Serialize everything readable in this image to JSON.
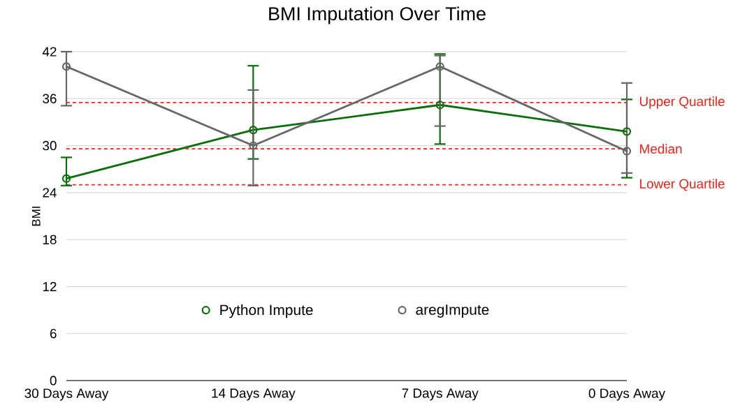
{
  "chart_data": {
    "type": "line",
    "title": "BMI Imputation Over Time",
    "ylabel": "BMI",
    "categories": [
      "30 Days Away",
      "14 Days Away",
      "7 Days Away",
      "0 Days Away"
    ],
    "series": [
      {
        "name": "Python Impute",
        "color": "#0b6e0b",
        "values": [
          25.8,
          32.0,
          35.2,
          31.8
        ],
        "errors": [
          [
            24.9,
            28.5
          ],
          [
            28.3,
            40.2
          ],
          [
            30.2,
            41.7
          ],
          [
            25.9,
            35.9
          ]
        ]
      },
      {
        "name": "aregImpute",
        "color": "#666666",
        "values": [
          40.1,
          30.0,
          40.1,
          29.3
        ],
        "errors": [
          [
            35.1,
            42.0
          ],
          [
            24.9,
            37.1
          ],
          [
            32.5,
            41.5
          ],
          [
            26.5,
            38.0
          ]
        ]
      }
    ],
    "ylim": [
      0,
      42
    ],
    "yticks": [
      0,
      6,
      12,
      18,
      24,
      30,
      36,
      42
    ],
    "grid": "y",
    "legend": "bottom",
    "marker": "circle",
    "ref_lines": [
      {
        "axis": "y",
        "value": 35.5,
        "label": "Upper Quartile",
        "color": "#e8261c",
        "line_style": "dashed"
      },
      {
        "axis": "y",
        "value": 29.6,
        "label": "Median",
        "color": "#e8261c",
        "line_style": "dashed"
      },
      {
        "axis": "y",
        "value": 25.0,
        "label": "Lower Quartile",
        "color": "#e8261c",
        "line_style": "dashed"
      }
    ]
  }
}
